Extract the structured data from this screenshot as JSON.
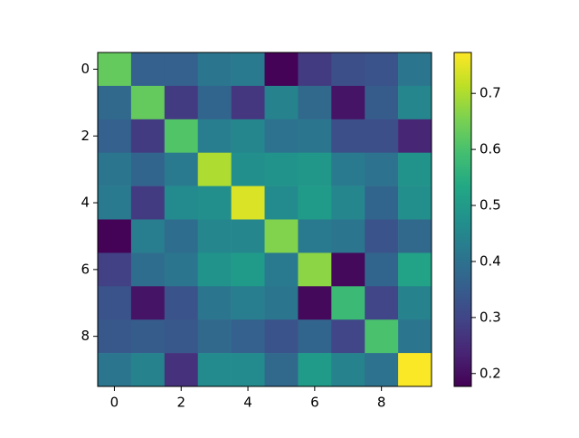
{
  "chart_data": {
    "type": "heatmap",
    "values": [
      [
        0.63,
        0.36,
        0.36,
        0.41,
        0.42,
        0.18,
        0.28,
        0.32,
        0.33,
        0.41
      ],
      [
        0.38,
        0.63,
        0.28,
        0.37,
        0.27,
        0.44,
        0.38,
        0.21,
        0.35,
        0.45
      ],
      [
        0.36,
        0.28,
        0.61,
        0.43,
        0.45,
        0.4,
        0.41,
        0.32,
        0.32,
        0.24
      ],
      [
        0.41,
        0.37,
        0.42,
        0.7,
        0.47,
        0.48,
        0.49,
        0.42,
        0.4,
        0.48
      ],
      [
        0.42,
        0.28,
        0.46,
        0.47,
        0.74,
        0.46,
        0.5,
        0.45,
        0.37,
        0.47
      ],
      [
        0.18,
        0.43,
        0.39,
        0.45,
        0.45,
        0.66,
        0.42,
        0.41,
        0.33,
        0.38
      ],
      [
        0.29,
        0.39,
        0.41,
        0.48,
        0.5,
        0.42,
        0.67,
        0.19,
        0.37,
        0.52
      ],
      [
        0.33,
        0.21,
        0.33,
        0.41,
        0.43,
        0.41,
        0.19,
        0.58,
        0.3,
        0.44
      ],
      [
        0.34,
        0.35,
        0.34,
        0.38,
        0.36,
        0.33,
        0.37,
        0.3,
        0.6,
        0.41
      ],
      [
        0.41,
        0.44,
        0.26,
        0.46,
        0.46,
        0.38,
        0.5,
        0.44,
        0.4,
        0.77
      ]
    ],
    "xlim": [
      -0.5,
      9.5
    ],
    "ylim": [
      9.5,
      -0.5
    ],
    "xticks": [
      0,
      2,
      4,
      6,
      8
    ],
    "yticks": [
      0,
      2,
      4,
      6,
      8
    ],
    "clim": [
      0.177,
      0.773
    ],
    "cticks": [
      0.2,
      0.3,
      0.4,
      0.5,
      0.6,
      0.7
    ],
    "colormap": [
      "#440154",
      "#482475",
      "#414487",
      "#355f8d",
      "#2a788e",
      "#21918c",
      "#22a884",
      "#44bf70",
      "#7ad151",
      "#bddf26",
      "#fde725"
    ]
  }
}
